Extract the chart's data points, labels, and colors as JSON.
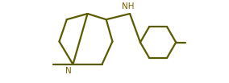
{
  "line_color": "#5a5a00",
  "bg_color": "#ffffff",
  "line_width": 1.6,
  "font_size_label": 7.5,
  "label_color": "#7a6000",
  "figsize": [
    2.84,
    1.03
  ],
  "dpi": 100,
  "xlim": [
    0.2,
    3.9
  ],
  "ylim": [
    0.05,
    2.05
  ]
}
